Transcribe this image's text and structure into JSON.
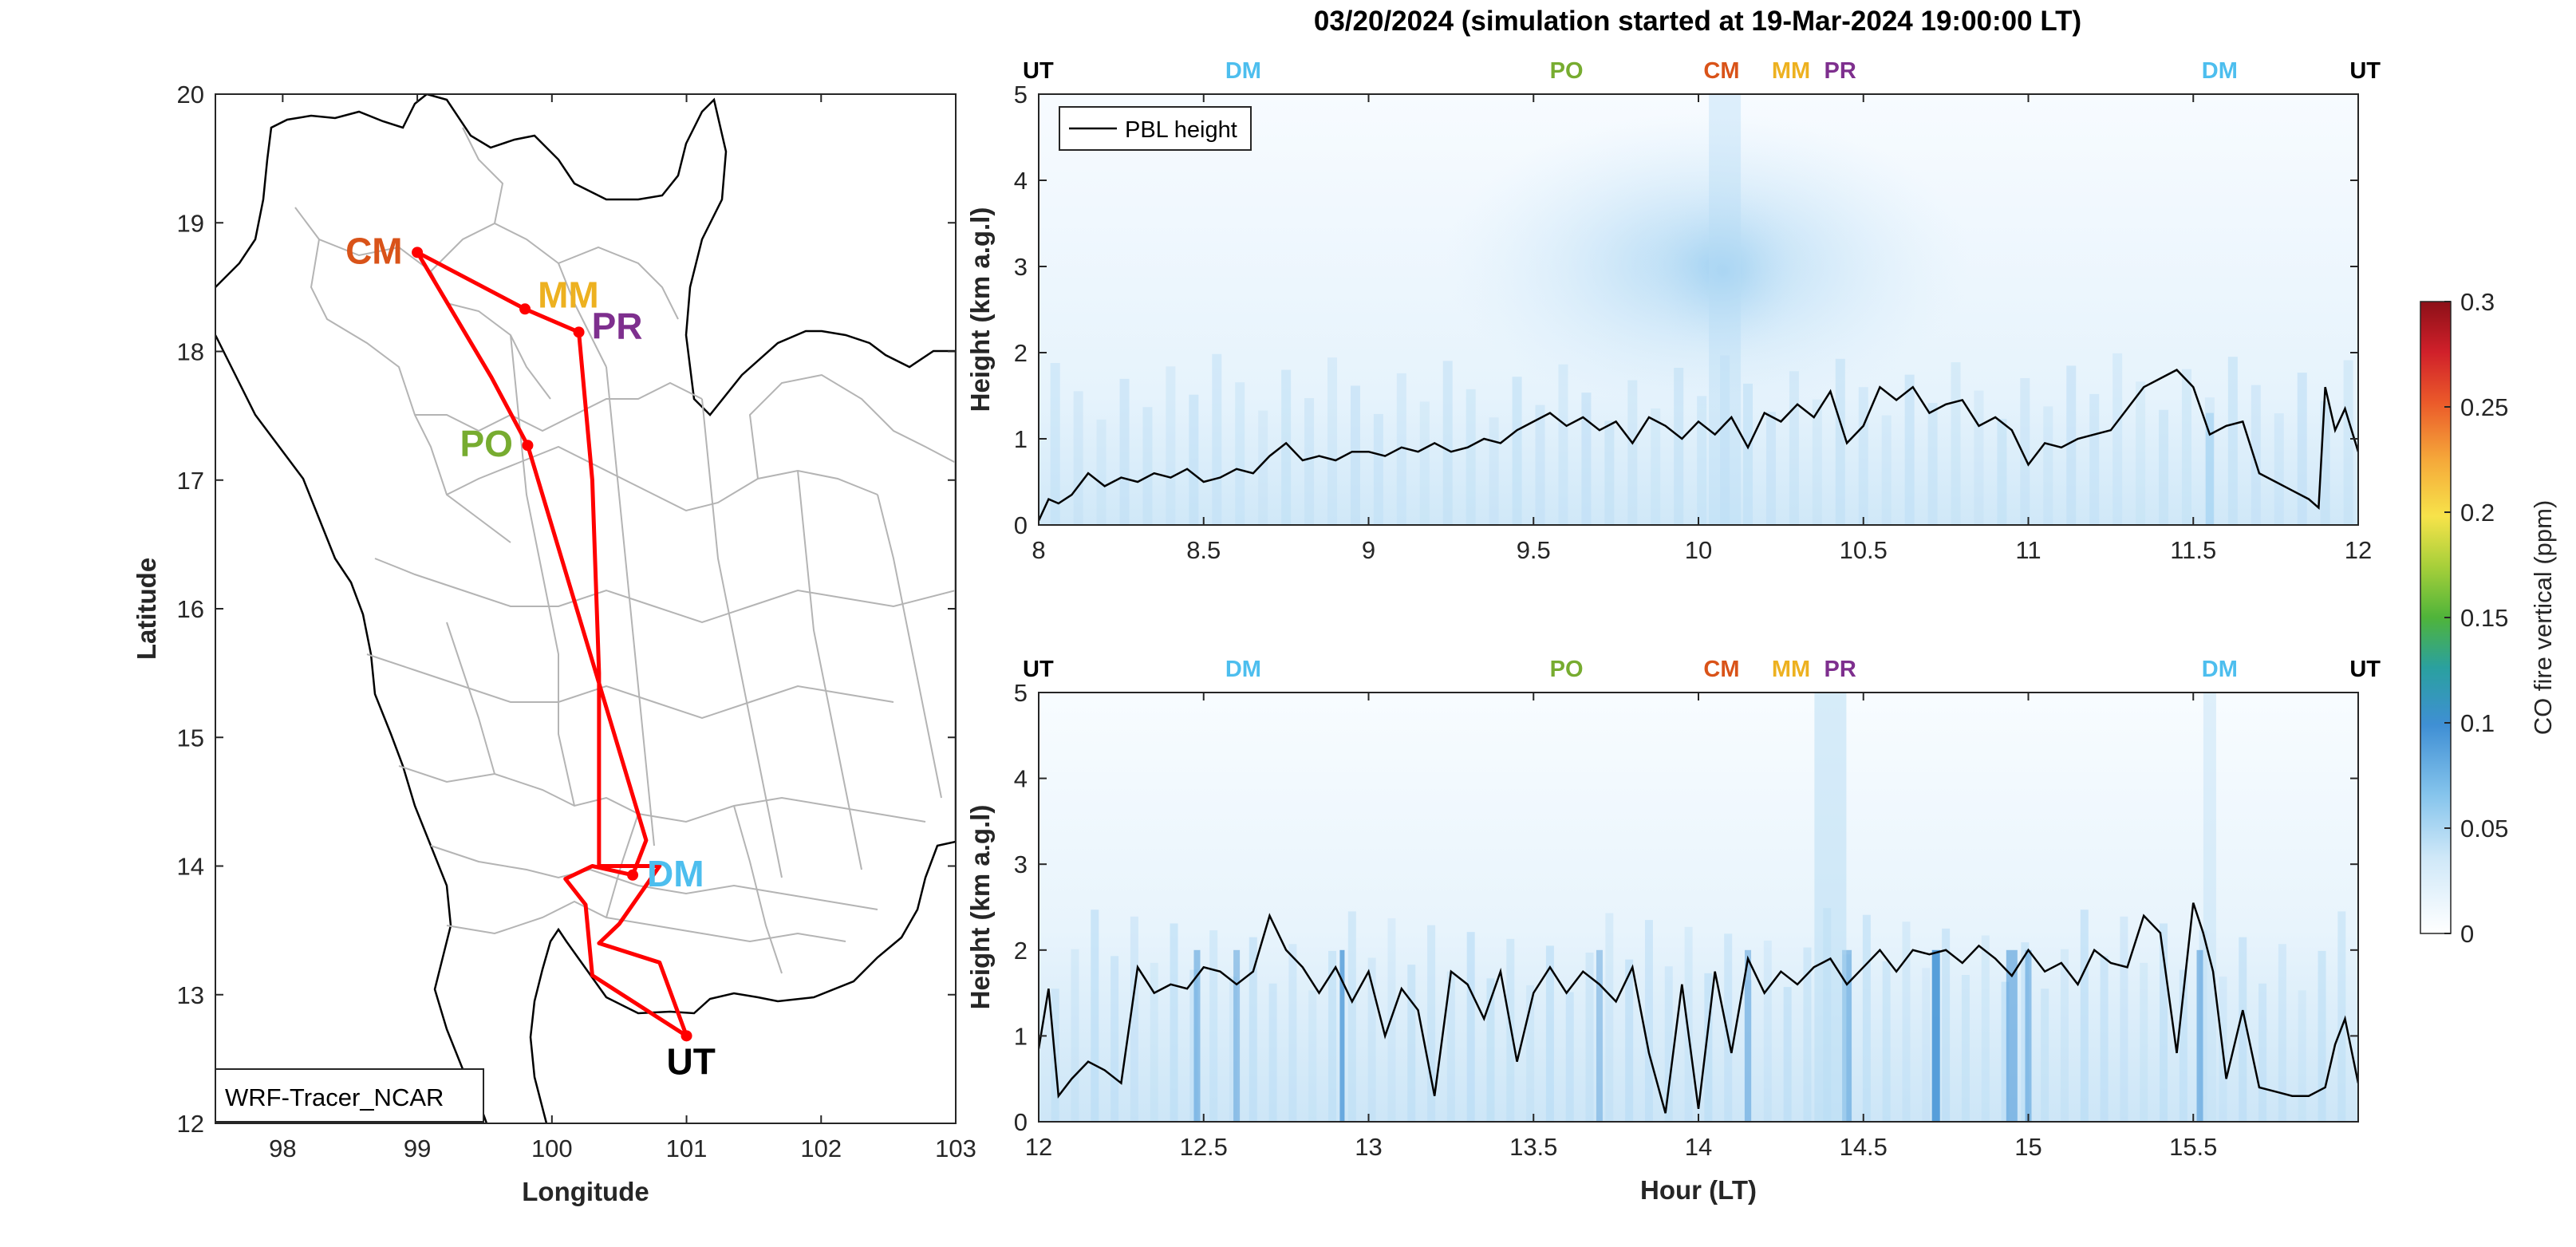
{
  "title": "03/20/2024 (simulation started at 19-Mar-2024 19:00:00 LT)",
  "colors": {
    "CM": "#d95319",
    "MM": "#edb120",
    "PR": "#7e2f8e",
    "PO": "#77ac30",
    "DM": "#4dbeee",
    "UT": "#000000",
    "route": "#ff0000",
    "boundary": "#b4b4b4"
  },
  "map": {
    "xlabel": "Longitude",
    "ylabel": "Latitude",
    "xlim": [
      97.5,
      103
    ],
    "ylim": [
      12,
      20
    ],
    "xticks": [
      "98",
      "99",
      "100",
      "101",
      "102",
      "103"
    ],
    "yticks": [
      "12",
      "13",
      "14",
      "15",
      "16",
      "17",
      "18",
      "19",
      "20"
    ],
    "legend": "WRF-Tracer_NCAR",
    "sites": [
      {
        "code": "CM",
        "lon": 99.0,
        "lat": 18.77
      },
      {
        "code": "MM",
        "lon": 99.8,
        "lat": 18.33
      },
      {
        "code": "PR",
        "lon": 100.2,
        "lat": 18.15
      },
      {
        "code": "PO",
        "lon": 99.82,
        "lat": 17.27
      },
      {
        "code": "DM",
        "lon": 100.6,
        "lat": 13.93
      },
      {
        "code": "UT",
        "lon": 101.0,
        "lat": 12.68
      }
    ]
  },
  "colorbar": {
    "label": "CO fire vertical (ppm)",
    "ticks": [
      "0",
      "0.05",
      "0.1",
      "0.15",
      "0.2",
      "0.25",
      "0.3"
    ],
    "range": [
      0,
      0.3
    ]
  },
  "chart_data": [
    {
      "type": "heatmap",
      "title": "03/20/2024 (simulation started at 19-Mar-2024 19:00:00 LT)",
      "xlabel": "",
      "ylabel": "Height (km a.g.l)",
      "xlim": [
        8,
        12
      ],
      "ylim": [
        0,
        5
      ],
      "xticks": [
        "8",
        "8.5",
        "9",
        "9.5",
        "10",
        "10.5",
        "11",
        "11.5",
        "12"
      ],
      "yticks": [
        "0",
        "1",
        "2",
        "3",
        "4",
        "5"
      ],
      "legend": "PBL height",
      "site_markers": [
        {
          "label": "UT",
          "x": 8.0
        },
        {
          "label": "DM",
          "x": 8.62
        },
        {
          "label": "PO",
          "x": 9.6
        },
        {
          "label": "CM",
          "x": 10.07
        },
        {
          "label": "MM",
          "x": 10.3
        },
        {
          "label": "PR",
          "x": 10.42
        },
        {
          "label": "DM",
          "x": 11.58
        },
        {
          "label": "UT",
          "x": 11.97
        }
      ],
      "series": [
        {
          "name": "PBL height",
          "x": [
            8.0,
            8.03,
            8.06,
            8.1,
            8.15,
            8.2,
            8.25,
            8.3,
            8.35,
            8.4,
            8.45,
            8.5,
            8.55,
            8.6,
            8.65,
            8.7,
            8.75,
            8.8,
            8.85,
            8.9,
            8.95,
            9.0,
            9.05,
            9.1,
            9.15,
            9.2,
            9.25,
            9.3,
            9.35,
            9.4,
            9.45,
            9.5,
            9.55,
            9.6,
            9.65,
            9.7,
            9.75,
            9.8,
            9.85,
            9.9,
            9.95,
            10.0,
            10.05,
            10.1,
            10.15,
            10.2,
            10.25,
            10.3,
            10.35,
            10.4,
            10.45,
            10.5,
            10.55,
            10.6,
            10.65,
            10.7,
            10.75,
            10.8,
            10.85,
            10.9,
            10.95,
            11.0,
            11.05,
            11.1,
            11.15,
            11.2,
            11.25,
            11.3,
            11.35,
            11.4,
            11.45,
            11.5,
            11.55,
            11.6,
            11.65,
            11.7,
            11.75,
            11.8,
            11.85,
            11.88,
            11.9,
            11.93,
            11.96,
            12.0
          ],
          "values": [
            0.05,
            0.3,
            0.25,
            0.35,
            0.6,
            0.45,
            0.55,
            0.5,
            0.6,
            0.55,
            0.65,
            0.5,
            0.55,
            0.65,
            0.6,
            0.8,
            0.95,
            0.75,
            0.8,
            0.75,
            0.85,
            0.85,
            0.8,
            0.9,
            0.85,
            0.95,
            0.85,
            0.9,
            1.0,
            0.95,
            1.1,
            1.2,
            1.3,
            1.15,
            1.25,
            1.1,
            1.2,
            0.95,
            1.25,
            1.15,
            1.0,
            1.2,
            1.05,
            1.25,
            0.9,
            1.3,
            1.2,
            1.4,
            1.25,
            1.55,
            0.95,
            1.15,
            1.6,
            1.45,
            1.6,
            1.3,
            1.4,
            1.45,
            1.15,
            1.25,
            1.1,
            0.7,
            0.95,
            0.9,
            1.0,
            1.05,
            1.1,
            1.35,
            1.6,
            1.7,
            1.8,
            1.6,
            1.05,
            1.15,
            1.2,
            0.6,
            0.5,
            0.4,
            0.3,
            0.2,
            1.6,
            1.1,
            1.35,
            0.85
          ]
        }
      ]
    },
    {
      "type": "heatmap",
      "xlabel": "Hour (LT)",
      "ylabel": "Height (km a.g.l)",
      "xlim": [
        12,
        16
      ],
      "ylim": [
        0,
        5
      ],
      "xticks": [
        "12",
        "12.5",
        "13",
        "13.5",
        "14",
        "14.5",
        "15",
        "15.5"
      ],
      "yticks": [
        "0",
        "1",
        "2",
        "3",
        "4",
        "5"
      ],
      "site_markers": [
        {
          "label": "UT",
          "x": 12.0
        },
        {
          "label": "DM",
          "x": 12.62
        },
        {
          "label": "PO",
          "x": 13.6
        },
        {
          "label": "CM",
          "x": 14.07
        },
        {
          "label": "MM",
          "x": 14.3
        },
        {
          "label": "PR",
          "x": 14.42
        },
        {
          "label": "DM",
          "x": 15.58
        },
        {
          "label": "UT",
          "x": 15.97
        }
      ],
      "series": [
        {
          "name": "PBL height",
          "x": [
            12.0,
            12.03,
            12.06,
            12.1,
            12.15,
            12.2,
            12.25,
            12.3,
            12.35,
            12.4,
            12.45,
            12.5,
            12.55,
            12.6,
            12.65,
            12.7,
            12.75,
            12.8,
            12.85,
            12.9,
            12.95,
            13.0,
            13.05,
            13.1,
            13.15,
            13.2,
            13.25,
            13.3,
            13.35,
            13.4,
            13.45,
            13.5,
            13.55,
            13.6,
            13.65,
            13.7,
            13.75,
            13.8,
            13.85,
            13.9,
            13.95,
            14.0,
            14.05,
            14.1,
            14.15,
            14.2,
            14.25,
            14.3,
            14.35,
            14.4,
            14.45,
            14.5,
            14.55,
            14.6,
            14.65,
            14.7,
            14.75,
            14.8,
            14.85,
            14.9,
            14.95,
            15.0,
            15.05,
            15.1,
            15.15,
            15.2,
            15.25,
            15.3,
            15.35,
            15.4,
            15.45,
            15.5,
            15.53,
            15.56,
            15.6,
            15.65,
            15.7,
            15.75,
            15.8,
            15.85,
            15.9,
            15.93,
            15.96,
            16.0
          ],
          "values": [
            0.85,
            1.55,
            0.3,
            0.5,
            0.7,
            0.6,
            0.45,
            1.8,
            1.5,
            1.6,
            1.55,
            1.8,
            1.75,
            1.6,
            1.75,
            2.4,
            2.0,
            1.8,
            1.5,
            1.8,
            1.4,
            1.75,
            1.0,
            1.55,
            1.3,
            0.3,
            1.75,
            1.6,
            1.2,
            1.75,
            0.7,
            1.5,
            1.8,
            1.5,
            1.75,
            1.6,
            1.4,
            1.8,
            0.8,
            0.1,
            1.6,
            0.15,
            1.75,
            0.8,
            1.9,
            1.5,
            1.75,
            1.6,
            1.8,
            1.9,
            1.6,
            1.8,
            2.0,
            1.75,
            2.0,
            1.95,
            2.0,
            1.85,
            2.05,
            1.9,
            1.7,
            2.0,
            1.75,
            1.85,
            1.6,
            2.0,
            1.85,
            1.8,
            2.4,
            2.2,
            0.8,
            2.55,
            2.2,
            1.75,
            0.5,
            1.3,
            0.4,
            0.35,
            0.3,
            0.3,
            0.4,
            0.9,
            1.2,
            0.45
          ]
        }
      ]
    }
  ]
}
